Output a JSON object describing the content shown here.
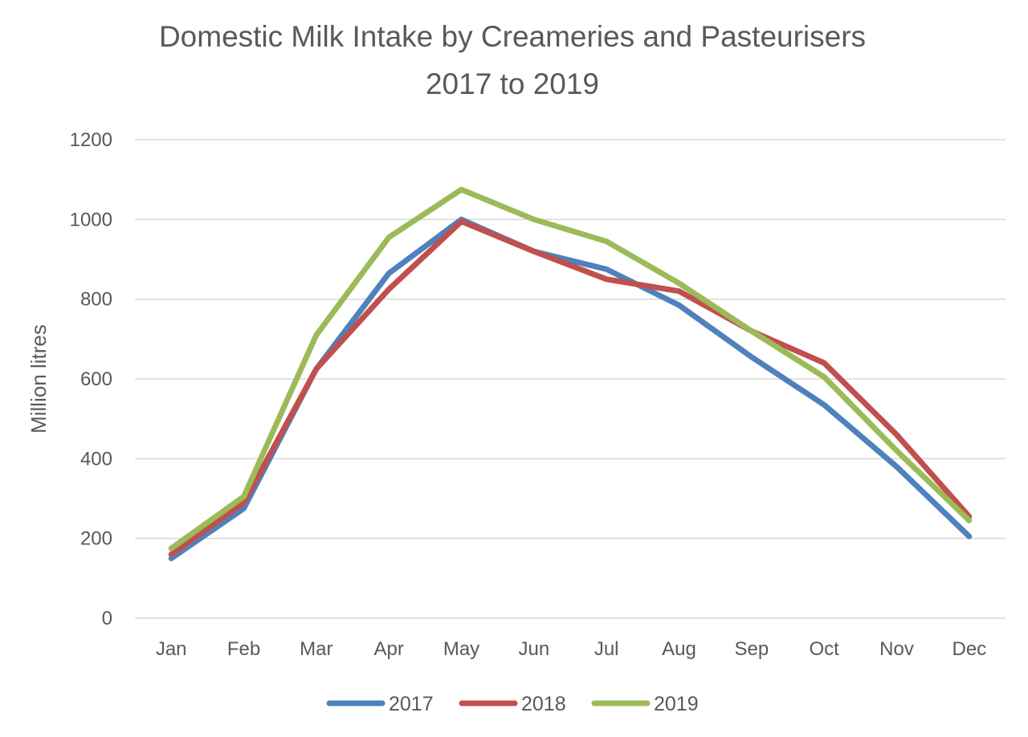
{
  "chart_data": {
    "type": "line",
    "title": "Domestic Milk Intake by Creameries and Pasteurisers",
    "subtitle": "2017 to 2019",
    "xlabel": "",
    "ylabel": "Million litres",
    "categories": [
      "Jan",
      "Feb",
      "Mar",
      "Apr",
      "May",
      "Jun",
      "Jul",
      "Aug",
      "Sep",
      "Oct",
      "Nov",
      "Dec"
    ],
    "ylim": [
      0,
      1200
    ],
    "yticks": [
      0,
      200,
      400,
      600,
      800,
      1000,
      1200
    ],
    "grid": true,
    "legend_position": "bottom",
    "series": [
      {
        "name": "2017",
        "color": "#4f81bd",
        "values": [
          150,
          275,
          625,
          865,
          1000,
          920,
          875,
          785,
          655,
          535,
          380,
          205
        ]
      },
      {
        "name": "2018",
        "color": "#c0504d",
        "values": [
          160,
          290,
          625,
          825,
          995,
          920,
          850,
          820,
          720,
          640,
          460,
          255
        ]
      },
      {
        "name": "2019",
        "color": "#9bbb59",
        "values": [
          175,
          305,
          710,
          955,
          1075,
          1000,
          945,
          840,
          720,
          605,
          420,
          245
        ]
      }
    ]
  }
}
